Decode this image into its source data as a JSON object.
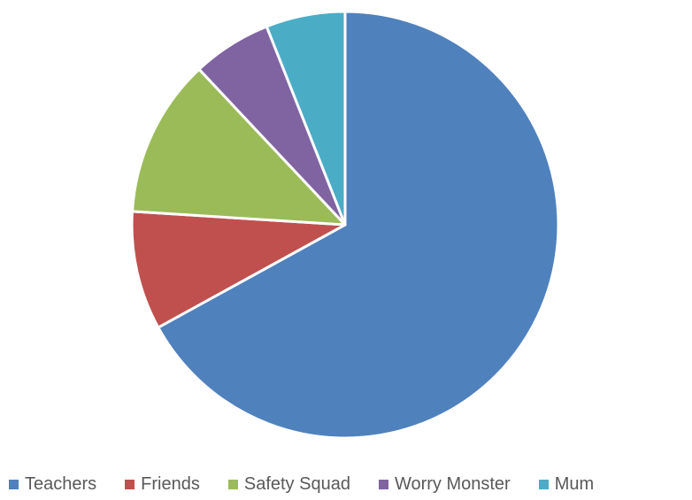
{
  "chart_data": {
    "type": "pie",
    "title": "",
    "categories": [
      "Teachers",
      "Friends",
      "Safety Squad",
      "Worry Monster",
      "Mum"
    ],
    "values": [
      67,
      9,
      12,
      6,
      6
    ],
    "colors": [
      "#4f81bd",
      "#c0504d",
      "#9bbb59",
      "#8064a2",
      "#4bacc6"
    ],
    "start_angle_deg": 0,
    "direction": "clockwise",
    "legend_position": "bottom"
  }
}
